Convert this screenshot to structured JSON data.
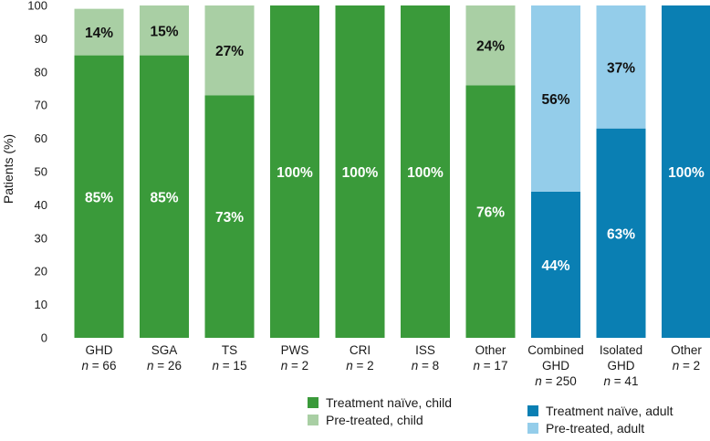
{
  "chart_data": {
    "type": "bar",
    "stacked": true,
    "ylabel": "Patients (%)",
    "ylim": [
      0,
      100
    ],
    "yticks": [
      0,
      10,
      20,
      30,
      40,
      50,
      60,
      70,
      80,
      90,
      100
    ],
    "grid": false,
    "categories": [
      {
        "name": "GHD",
        "n": "66"
      },
      {
        "name": "SGA",
        "n": "26"
      },
      {
        "name": "TS",
        "n": "15"
      },
      {
        "name": "PWS",
        "n": "2"
      },
      {
        "name": "CRI",
        "n": "2"
      },
      {
        "name": "ISS",
        "n": "8"
      },
      {
        "name": "Other",
        "n": "17"
      },
      {
        "name": "Combined GHD",
        "n": "250"
      },
      {
        "name": "Isolated GHD",
        "n": "41"
      },
      {
        "name": "Other",
        "n": "2"
      }
    ],
    "n_prefix": "n",
    "n_equals": " = ",
    "series": [
      {
        "name": "Treatment naïve, child",
        "color": "#3a9a3a",
        "values": [
          85,
          85,
          73,
          100,
          100,
          100,
          76,
          null,
          null,
          null
        ],
        "labels": [
          "85%",
          "85%",
          "73%",
          "100%",
          "100%",
          "100%",
          "76%",
          null,
          null,
          null
        ]
      },
      {
        "name": "Pre-treated, child",
        "color": "#a9cfa4",
        "values": [
          14,
          15,
          27,
          null,
          null,
          null,
          24,
          null,
          null,
          null
        ],
        "labels": [
          "14%",
          "15%",
          "27%",
          null,
          null,
          null,
          "24%",
          null,
          null,
          null
        ]
      },
      {
        "name": "Treatment naïve, adult",
        "color": "#0a7fb3",
        "values": [
          null,
          null,
          null,
          null,
          null,
          null,
          null,
          44,
          63,
          100
        ],
        "labels": [
          null,
          null,
          null,
          null,
          null,
          null,
          null,
          "44%",
          "63%",
          "100%"
        ]
      },
      {
        "name": "Pre-treated, adult",
        "color": "#94cdea",
        "values": [
          null,
          null,
          null,
          null,
          null,
          null,
          null,
          56,
          37,
          null
        ],
        "labels": [
          null,
          null,
          null,
          null,
          null,
          null,
          null,
          "56%",
          "37%",
          null
        ]
      }
    ],
    "legend_placement": "bottom"
  }
}
